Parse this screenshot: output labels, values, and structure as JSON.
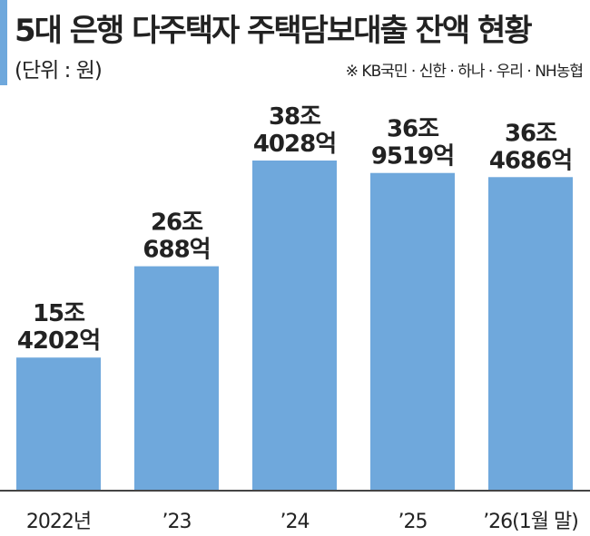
{
  "title": "5대 은행 다주택자 주택담보대출 잔액 현황",
  "unit_note": "(단위 : 원)",
  "source_note": "※ KB국민 · 신한 · 하나 · 우리 · NH농협",
  "colors": {
    "bar": "#6fa8dc",
    "accent": "#6fa8dc",
    "text": "#222222",
    "axis": "#444444"
  },
  "chart_data": {
    "type": "bar",
    "title": "5대 은행 다주택자 주택담보대출 잔액 현황",
    "xlabel": "",
    "ylabel": "",
    "categories": [
      "2022년",
      "’23",
      "’24",
      "’25",
      "’26(1월 말)"
    ],
    "values": [
      154202,
      260688,
      384028,
      369519,
      364686
    ],
    "value_units": "억원",
    "data_labels": [
      [
        "15조",
        "4202억"
      ],
      [
        "26조",
        "688억"
      ],
      [
        "38조",
        "4028억"
      ],
      [
        "36조",
        "9519억"
      ],
      [
        "36조",
        "4686억"
      ]
    ],
    "ylim": [
      0,
      420000
    ],
    "grid": false,
    "legend": "none"
  }
}
